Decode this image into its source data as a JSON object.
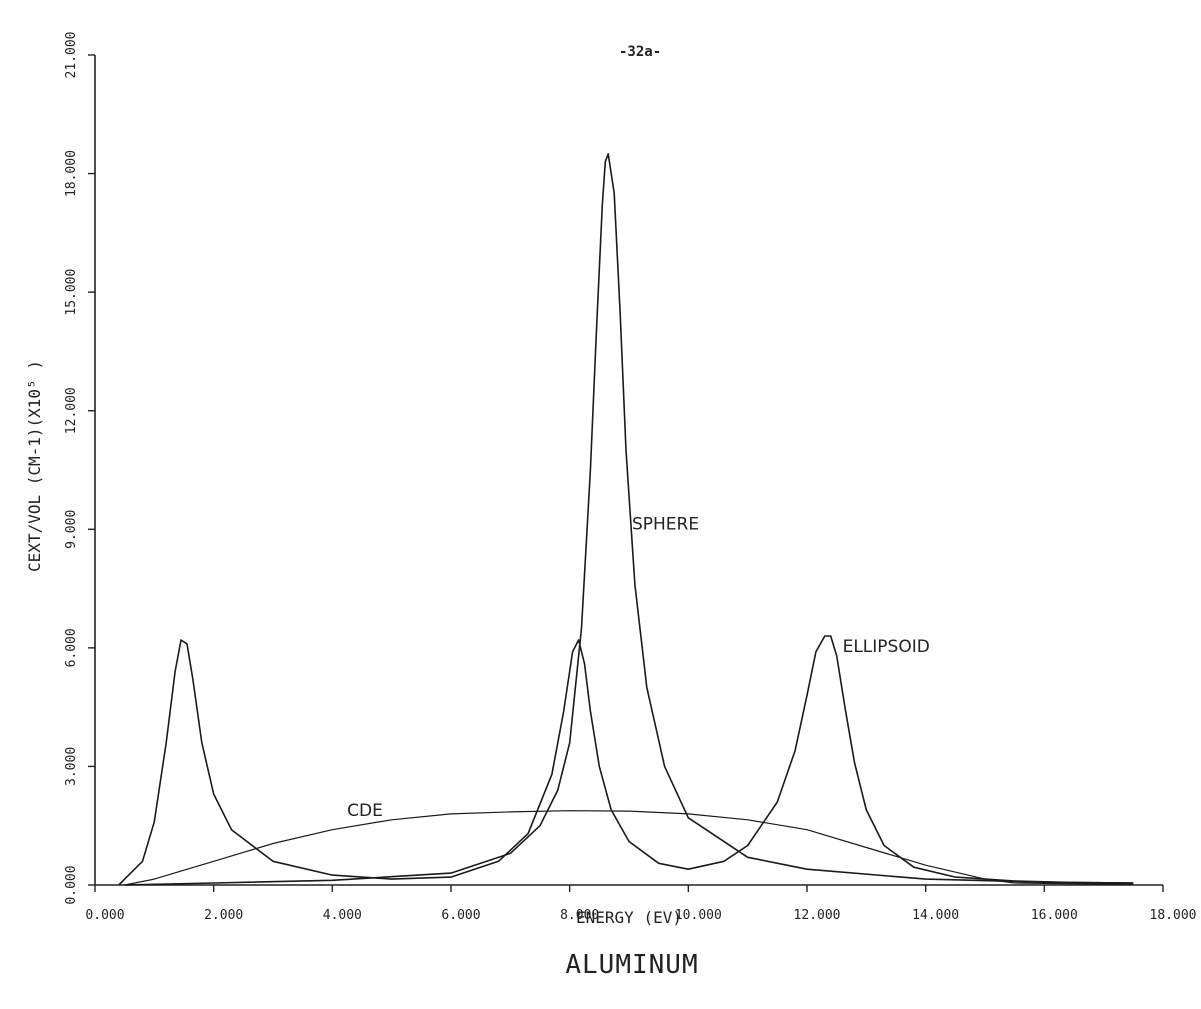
{
  "page_number": "-32a-",
  "chart_data": {
    "type": "line",
    "title": "ALUMINUM",
    "xlabel": "ENERGY (EV)",
    "ylabel": "CEXT/VOL (CM-1)(X10⁵ )",
    "xlim": [
      0,
      18
    ],
    "ylim": [
      0,
      21
    ],
    "x_ticks": [
      "0.000",
      "2.000",
      "4.000",
      "6.000",
      "8.000",
      "10.000",
      "12.000",
      "14.000",
      "16.000",
      "18.000"
    ],
    "y_ticks": [
      "0.000",
      "3.000",
      "6.000",
      "9.000",
      "12.000",
      "15.000",
      "18.000",
      "21.000"
    ],
    "grid": false,
    "legend": "none (curves labelled directly)",
    "series": [
      {
        "name": "SPHERE",
        "x": [
          0.5,
          2.0,
          4.0,
          6.0,
          7.0,
          7.5,
          7.8,
          8.0,
          8.2,
          8.35,
          8.45,
          8.55,
          8.6,
          8.65,
          8.75,
          8.85,
          8.95,
          9.1,
          9.3,
          9.6,
          10.0,
          11.0,
          12.0,
          14.0,
          16.0,
          17.5
        ],
        "y": [
          0.0,
          0.05,
          0.12,
          0.3,
          0.8,
          1.5,
          2.4,
          3.6,
          6.5,
          10.5,
          14.0,
          17.2,
          18.3,
          18.5,
          17.5,
          14.5,
          11.0,
          7.6,
          5.0,
          3.0,
          1.7,
          0.7,
          0.4,
          0.15,
          0.07,
          0.05
        ]
      },
      {
        "name": "ELLIPSOID",
        "x": [
          0.4,
          0.8,
          1.0,
          1.2,
          1.35,
          1.45,
          1.55,
          1.65,
          1.8,
          2.0,
          2.3,
          3.0,
          4.0,
          5.0,
          6.0,
          6.8,
          7.3,
          7.7,
          7.9,
          8.05,
          8.15,
          8.25,
          8.35,
          8.5,
          8.7,
          9.0,
          9.5,
          10.0,
          10.6,
          11.0,
          11.5,
          11.8,
          12.0,
          12.15,
          12.3,
          12.4,
          12.5,
          12.65,
          12.8,
          13.0,
          13.3,
          13.8,
          14.5,
          15.5,
          16.5,
          17.5
        ],
        "y": [
          0.0,
          0.6,
          1.6,
          3.6,
          5.4,
          6.2,
          6.1,
          5.2,
          3.6,
          2.3,
          1.4,
          0.6,
          0.25,
          0.15,
          0.2,
          0.6,
          1.3,
          2.8,
          4.4,
          5.9,
          6.2,
          5.6,
          4.4,
          3.0,
          1.9,
          1.1,
          0.55,
          0.4,
          0.6,
          1.0,
          2.1,
          3.4,
          4.8,
          5.9,
          6.3,
          6.3,
          5.8,
          4.4,
          3.1,
          1.9,
          1.0,
          0.45,
          0.2,
          0.1,
          0.06,
          0.05
        ]
      },
      {
        "name": "CDE",
        "x": [
          0.5,
          1.0,
          2.0,
          3.0,
          4.0,
          5.0,
          6.0,
          7.0,
          8.0,
          9.0,
          10.0,
          11.0,
          12.0,
          13.0,
          14.0,
          15.0,
          15.5,
          16.5,
          17.5
        ],
        "y": [
          0.0,
          0.15,
          0.6,
          1.05,
          1.4,
          1.65,
          1.8,
          1.85,
          1.88,
          1.87,
          1.8,
          1.65,
          1.4,
          0.95,
          0.5,
          0.15,
          0.05,
          0.03,
          0.02
        ]
      }
    ],
    "annotations": [
      {
        "text": "SPHERE",
        "x": 9.05,
        "y": 9.0
      },
      {
        "text": "ELLIPSOID",
        "x": 12.6,
        "y": 5.9
      },
      {
        "text": "CDE",
        "x": 4.25,
        "y": 1.75
      }
    ]
  }
}
